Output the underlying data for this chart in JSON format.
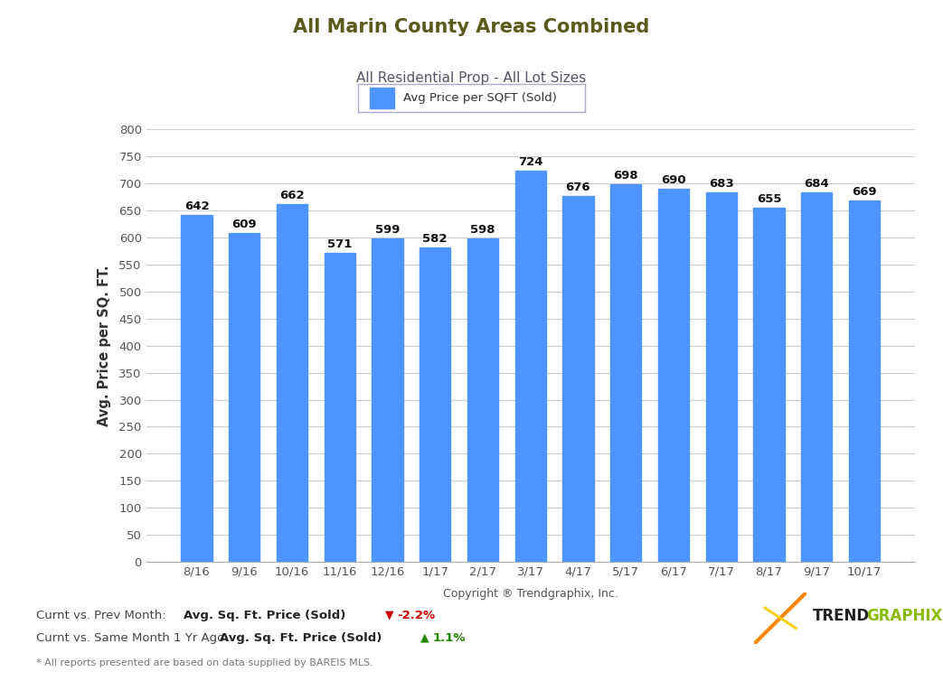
{
  "title": "All Marin County Areas Combined",
  "subtitle": "All Residential Prop - All Lot Sizes",
  "legend_label": "Avg Price per SQFT (Sold)",
  "ylabel": "Avg. Price per SQ. FT.",
  "xlabel": "Copyright ® Trendgraphix, Inc.",
  "categories": [
    "8/16",
    "9/16",
    "10/16",
    "11/16",
    "12/16",
    "1/17",
    "2/17",
    "3/17",
    "4/17",
    "5/17",
    "6/17",
    "7/17",
    "8/17",
    "9/17",
    "10/17"
  ],
  "values": [
    642,
    609,
    662,
    571,
    599,
    582,
    598,
    724,
    676,
    698,
    690,
    683,
    655,
    684,
    669
  ],
  "bar_color": "#4d94ff",
  "title_color": "#5a5a1a",
  "subtitle_color": "#555566",
  "ylabel_color": "#333333",
  "xlabel_color": "#555555",
  "value_label_color": "#111111",
  "grid_color": "#cccccc",
  "header_bg_color": "#e8e8e8",
  "plot_bg_color": "#ffffff",
  "ylim": [
    0,
    800
  ],
  "yticks": [
    0,
    50,
    100,
    150,
    200,
    250,
    300,
    350,
    400,
    450,
    500,
    550,
    600,
    650,
    700,
    750,
    800
  ],
  "footer_line1_normal1": "Curnt vs. Prev Month: ",
  "footer_line1_bold": "Avg. Sq. Ft. Price (Sold)",
  "footer_line1_arrow": "▼",
  "footer_line1_pct": "-2.2%",
  "footer_line2_normal1": "Curnt vs. Same Month 1 Yr Ago: ",
  "footer_line2_bold": "Avg. Sq. Ft. Price (Sold)",
  "footer_line2_arrow": "▲",
  "footer_line2_pct": "1.1%",
  "footer_note": "* All reports presented are based on data supplied by BAREIS MLS.",
  "arrow_down_color": "#cc0000",
  "arrow_up_color": "#228800",
  "pct_down_color": "#cc0000",
  "pct_up_color": "#228800",
  "legend_border_color": "#aaaacc",
  "spine_bottom_color": "#aaaaaa",
  "tick_label_color": "#555555"
}
